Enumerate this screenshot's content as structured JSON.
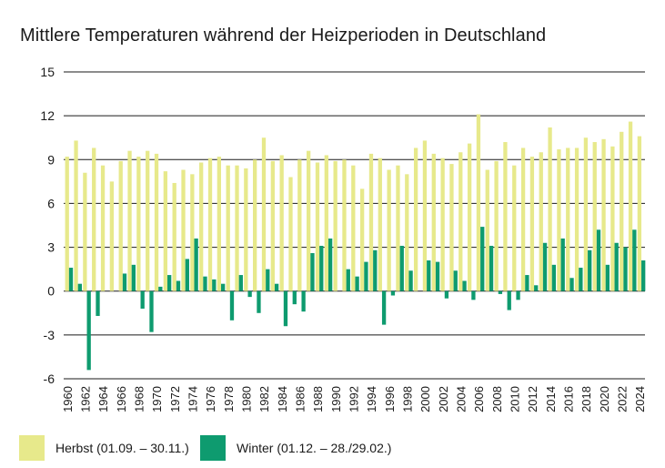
{
  "title": "Mittlere Temperaturen während der Heizperioden in Deutschland",
  "colors": {
    "herbst": "#e7e98b",
    "winter": "#0e9b6f",
    "axis": "#1a1a1a",
    "grid": "#1a1a1a"
  },
  "chart_data": {
    "type": "bar",
    "title": "Mittlere Temperaturen während der Heizperioden in Deutschland",
    "xlabel": "",
    "ylabel": "",
    "ylim": [
      -6,
      15
    ],
    "yticks": [
      15,
      12,
      9,
      6,
      3,
      0,
      -3,
      -6
    ],
    "ytick_labels": [
      "15",
      "12",
      "9",
      "6",
      "3",
      "0",
      "-3",
      "-6"
    ],
    "grid": "horizontal",
    "legend_position": "bottom",
    "categories": [
      1960,
      1961,
      1962,
      1963,
      1964,
      1965,
      1966,
      1967,
      1968,
      1969,
      1970,
      1971,
      1972,
      1973,
      1974,
      1975,
      1976,
      1977,
      1978,
      1979,
      1980,
      1981,
      1982,
      1983,
      1984,
      1985,
      1986,
      1987,
      1988,
      1989,
      1990,
      1991,
      1992,
      1993,
      1994,
      1995,
      1996,
      1997,
      1998,
      1999,
      2000,
      2001,
      2002,
      2003,
      2004,
      2005,
      2006,
      2007,
      2008,
      2009,
      2010,
      2011,
      2012,
      2013,
      2014,
      2015,
      2016,
      2017,
      2018,
      2019,
      2020,
      2021,
      2022,
      2023,
      2024
    ],
    "xtick_labels": [
      "1960",
      "1962",
      "1964",
      "1966",
      "1968",
      "1970",
      "1972",
      "1974",
      "1976",
      "1978",
      "1980",
      "1982",
      "1984",
      "1986",
      "1988",
      "1990",
      "1992",
      "1994",
      "1996",
      "1998",
      "2000",
      "2002",
      "2004",
      "2006",
      "2008",
      "2010",
      "2012",
      "2014",
      "2016",
      "2018",
      "2020",
      "2022",
      "2024"
    ],
    "series": [
      {
        "name": "Herbst (01.09. – 30.11.)",
        "values": [
          9.2,
          10.3,
          8.1,
          9.8,
          8.6,
          7.5,
          8.9,
          9.6,
          9.2,
          9.6,
          9.4,
          8.2,
          7.4,
          8.3,
          8.0,
          8.8,
          9.1,
          9.2,
          8.6,
          8.6,
          8.4,
          9.0,
          10.5,
          8.9,
          9.3,
          7.8,
          9.0,
          9.6,
          8.8,
          9.3,
          8.9,
          9.0,
          8.6,
          7.0,
          9.4,
          9.1,
          8.3,
          8.6,
          8.0,
          9.8,
          10.3,
          9.4,
          9.1,
          8.7,
          9.5,
          10.1,
          12.1,
          8.3,
          8.9,
          10.2,
          8.6,
          9.8,
          9.2,
          9.5,
          11.2,
          9.7,
          9.8,
          9.8,
          10.5,
          10.2,
          10.4,
          9.9,
          10.9,
          11.6,
          10.6
        ]
      },
      {
        "name": "Winter (01.12. – 28./29.02.)",
        "values": [
          1.6,
          0.5,
          -5.4,
          -1.7,
          0.0,
          0.0,
          1.2,
          1.8,
          -1.2,
          -2.8,
          0.3,
          1.1,
          0.7,
          2.2,
          3.6,
          1.0,
          0.8,
          0.5,
          -2.0,
          1.1,
          -0.4,
          -1.5,
          1.5,
          0.5,
          -2.4,
          -0.9,
          -1.4,
          2.6,
          3.1,
          3.6,
          0.0,
          1.5,
          1.0,
          2.0,
          2.8,
          -2.3,
          -0.3,
          3.1,
          1.4,
          0.0,
          2.1,
          2.0,
          -0.5,
          1.4,
          0.7,
          -0.6,
          4.4,
          3.1,
          -0.2,
          -1.3,
          -0.6,
          1.1,
          0.4,
          3.3,
          1.8,
          3.6,
          0.9,
          1.6,
          2.8,
          4.2,
          1.8,
          3.3,
          3.0,
          4.2,
          2.1
        ]
      }
    ]
  },
  "legend": {
    "items": [
      {
        "label": "Herbst (01.09. – 30.11.)",
        "color": "#e7e98b"
      },
      {
        "label": "Winter (01.12. – 28./29.02.)",
        "color": "#0e9b6f"
      }
    ]
  }
}
